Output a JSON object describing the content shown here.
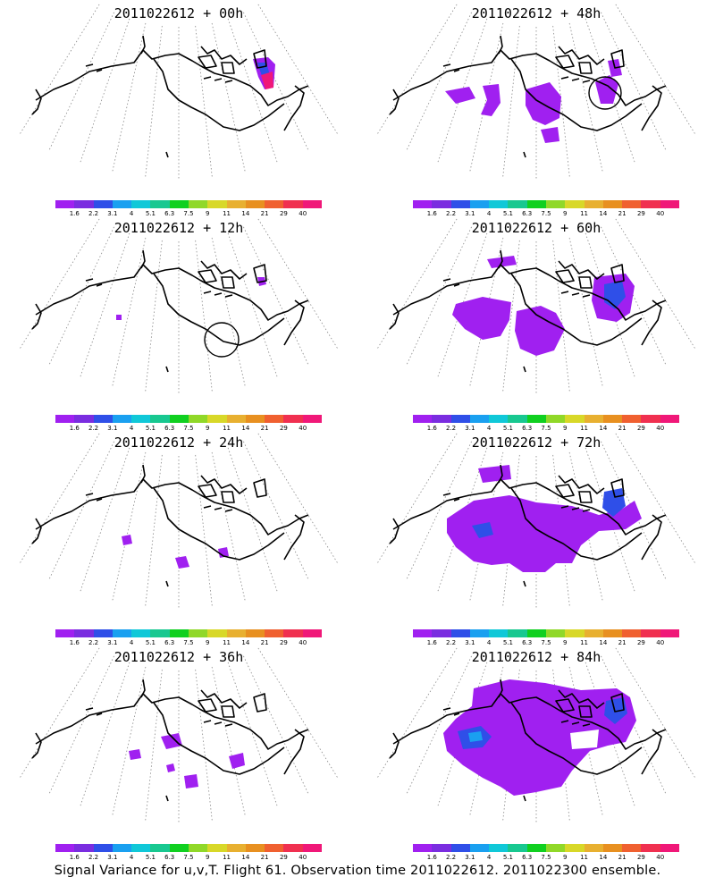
{
  "caption": "Signal Variance for u,v,T. Flight 61. Observation time 2011022612. 2011022300 ensemble.",
  "colorbar": {
    "colors": [
      "#a020f0",
      "#7a2de0",
      "#2f4fe8",
      "#1aa0f0",
      "#10c8d8",
      "#18c890",
      "#10d020",
      "#90d828",
      "#d8d828",
      "#e8b030",
      "#e89020",
      "#f06030",
      "#f03050",
      "#f01878"
    ],
    "labels": [
      "1.6",
      "2.2",
      "3.1",
      "4",
      "5.1",
      "6.3",
      "7.5",
      "9",
      "11",
      "14",
      "21",
      "29",
      "40"
    ]
  },
  "legend_colors": {
    "coastline": "#000000",
    "grid": "#888888",
    "low_variance": "#a020f0",
    "mid_variance": "#2f4fe8",
    "high_variance": "#f01878"
  },
  "panels": [
    {
      "title": "2011022612 + 00h",
      "lead_hours": 0
    },
    {
      "title": "2011022612 + 48h",
      "lead_hours": 48
    },
    {
      "title": "2011022612 + 12h",
      "lead_hours": 12
    },
    {
      "title": "2011022612 + 60h",
      "lead_hours": 60
    },
    {
      "title": "2011022612 + 24h",
      "lead_hours": 24
    },
    {
      "title": "2011022612 + 72h",
      "lead_hours": 72
    },
    {
      "title": "2011022612 + 36h",
      "lead_hours": 36
    },
    {
      "title": "2011022612 + 84h",
      "lead_hours": 84
    }
  ]
}
